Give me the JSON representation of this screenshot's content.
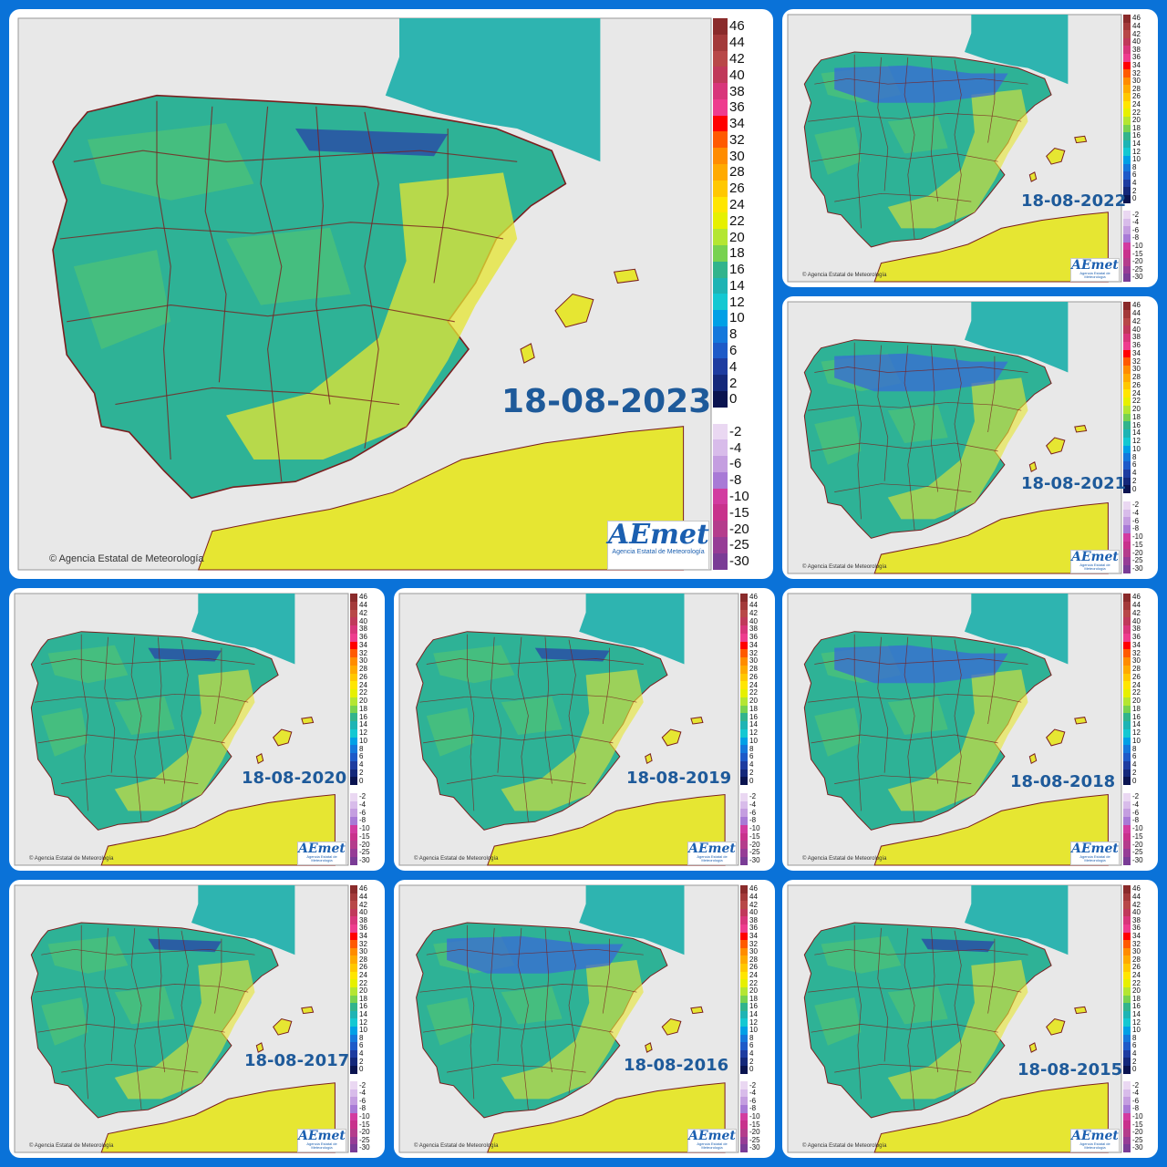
{
  "credit": "Agencia Estatal de Meteorología",
  "logo": {
    "brand": "AEmet",
    "subtitle": "Agencia Estatal de Meteorología"
  },
  "legend": {
    "scale": [
      {
        "label": "46",
        "color": "#8a2b2b"
      },
      {
        "label": "44",
        "color": "#a33a3a"
      },
      {
        "label": "42",
        "color": "#b84848"
      },
      {
        "label": "40",
        "color": "#c0395a"
      },
      {
        "label": "38",
        "color": "#d8367a"
      },
      {
        "label": "36",
        "color": "#ee3c8e"
      },
      {
        "label": "34",
        "color": "#ff0000"
      },
      {
        "label": "32",
        "color": "#ff5a00"
      },
      {
        "label": "30",
        "color": "#ff8c00"
      },
      {
        "label": "28",
        "color": "#ffaa00"
      },
      {
        "label": "26",
        "color": "#ffc800"
      },
      {
        "label": "24",
        "color": "#ffe600"
      },
      {
        "label": "22",
        "color": "#e6f000"
      },
      {
        "label": "20",
        "color": "#b4e632"
      },
      {
        "label": "18",
        "color": "#78d250"
      },
      {
        "label": "16",
        "color": "#32b48c"
      },
      {
        "label": "14",
        "color": "#1eb4b4"
      },
      {
        "label": "12",
        "color": "#14c8d2"
      },
      {
        "label": "10",
        "color": "#00a0e6"
      },
      {
        "label": "8",
        "color": "#1478dc"
      },
      {
        "label": "6",
        "color": "#1e5ac8"
      },
      {
        "label": "4",
        "color": "#1e3ca0"
      },
      {
        "label": "2",
        "color": "#14287a"
      },
      {
        "label": "0",
        "color": "#0a1450"
      },
      {
        "label": "",
        "color": "#ffffff"
      },
      {
        "label": "-2",
        "color": "#ead8f2"
      },
      {
        "label": "-4",
        "color": "#d8bcea"
      },
      {
        "label": "-6",
        "color": "#c49ee0"
      },
      {
        "label": "-8",
        "color": "#a87ad6"
      },
      {
        "label": "-10",
        "color": "#d23ca0"
      },
      {
        "label": "-15",
        "color": "#c8328c"
      },
      {
        "label": "-20",
        "color": "#b43c8c"
      },
      {
        "label": "-25",
        "color": "#963c96"
      },
      {
        "label": "-30",
        "color": "#7a3c96"
      }
    ]
  },
  "colors": {
    "background": "#0a72d8",
    "land_teal": "#2eb296",
    "land_green": "#5ac86e",
    "land_yellow": "#e6e632",
    "land_blue": "#3a6ad6",
    "land_darkblue": "#2a3aa8",
    "sea": "#e8e8e8",
    "france": "#2eb4b0",
    "border": "#7a1e1e",
    "date_text": "#1e5a9a"
  },
  "maps": [
    {
      "date": "18-08-2023",
      "icon": "temperature-map-icon"
    },
    {
      "date": "18-08-2022",
      "icon": "temperature-map-icon"
    },
    {
      "date": "18-08-2021",
      "icon": "temperature-map-icon"
    },
    {
      "date": "18-08-2020",
      "icon": "temperature-map-icon"
    },
    {
      "date": "18-08-2019",
      "icon": "temperature-map-icon"
    },
    {
      "date": "18-08-2018",
      "icon": "temperature-map-icon"
    },
    {
      "date": "18-08-2017",
      "icon": "temperature-map-icon"
    },
    {
      "date": "18-08-2016",
      "icon": "temperature-map-icon"
    },
    {
      "date": "18-08-2015",
      "icon": "temperature-map-icon"
    }
  ]
}
